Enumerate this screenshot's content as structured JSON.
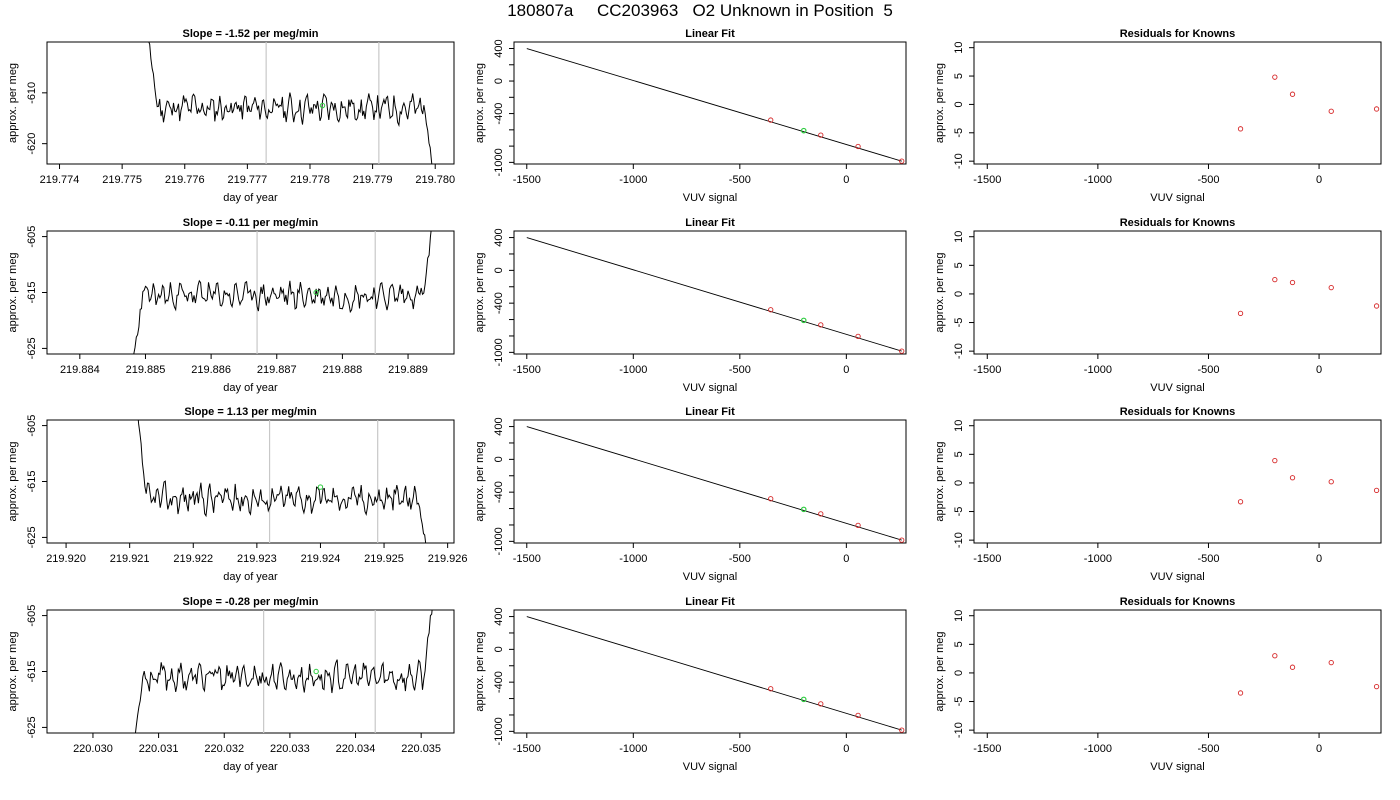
{
  "figure": {
    "title": "180807a     CC203963   O2 Unknown in Position  5"
  },
  "colors": {
    "line": "#000000",
    "known_point": "#d62728",
    "unknown_point": "#2ecc40",
    "window_line": "#c8c8c8"
  },
  "chart_data": [
    {
      "type": "line",
      "title": "Slope =  -1.52  per meg/min",
      "xlabel": "day of year",
      "ylabel": "approx. per meg",
      "xlim": [
        219.7738,
        219.7803
      ],
      "ylim": [
        -624,
        -600
      ],
      "x_ticks": [
        "219.774",
        "219.775",
        "219.776",
        "219.777",
        "219.778",
        "219.779",
        "219.780"
      ],
      "x_tick_values": [
        219.774,
        219.775,
        219.776,
        219.777,
        219.778,
        219.779,
        219.78
      ],
      "y_ticks": [
        "-620",
        "-610"
      ],
      "y_tick_values": [
        -620,
        -610
      ],
      "window": [
        219.7773,
        219.7791
      ],
      "unknown_point": {
        "x": 219.7782,
        "y": -612.5
      },
      "series": [
        {
          "x_start": 219.7754,
          "x_end": 219.78,
          "mean": -613.0,
          "amp": 2.6,
          "seed": 11,
          "start_y": -597,
          "end_y": -630
        }
      ]
    },
    {
      "type": "scatter",
      "title": "Linear Fit",
      "xlabel": "VUV signal",
      "ylabel": "approx. per meg",
      "xlim": [
        -1560,
        280
      ],
      "ylim": [
        -1020,
        480
      ],
      "x_ticks": [
        "-1500",
        "-1000",
        "-500",
        "0"
      ],
      "x_tick_values": [
        -1500,
        -1000,
        -500,
        0
      ],
      "y_ticks": [
        "-1000",
        "-800",
        "-600",
        "-400",
        "-200",
        "0",
        "200",
        "400"
      ],
      "y_tick_values": [
        -1000,
        -800,
        -600,
        -400,
        -200,
        0,
        200,
        400
      ],
      "y_tick_labels_shown": [
        "-1000",
        "-400",
        "0",
        "400"
      ],
      "fit_line": {
        "x": [
          -1500,
          260
        ],
        "y": [
          400,
          -985
        ]
      },
      "knowns": {
        "x": [
          -355,
          -120,
          55,
          260
        ],
        "y": [
          -480,
          -665,
          -805,
          -985
        ]
      },
      "unknown_point": {
        "x": -200,
        "y": -610
      }
    },
    {
      "type": "scatter",
      "title": "Residuals for Knowns",
      "xlabel": "VUV signal",
      "ylabel": "approx. per meg",
      "xlim": [
        -1560,
        280
      ],
      "ylim": [
        -10.5,
        11
      ],
      "x_ticks": [
        "-1500",
        "-1000",
        "-500",
        "0"
      ],
      "x_tick_values": [
        -1500,
        -1000,
        -500,
        0
      ],
      "y_ticks": [
        "-10",
        "-5",
        "0",
        "5",
        "10"
      ],
      "y_tick_values": [
        -10,
        -5,
        0,
        5,
        10
      ],
      "points": {
        "x": [
          -355,
          -200,
          -120,
          55,
          260
        ],
        "y": [
          -4.3,
          4.8,
          1.8,
          -1.2,
          -0.8
        ]
      }
    },
    {
      "type": "line",
      "title": "Slope =  -0.11  per meg/min",
      "xlabel": "day of year",
      "ylabel": "approx. per meg",
      "xlim": [
        219.8835,
        219.8897
      ],
      "ylim": [
        -626,
        -604
      ],
      "x_ticks": [
        "219.884",
        "219.885",
        "219.886",
        "219.887",
        "219.888",
        "219.889"
      ],
      "x_tick_values": [
        219.884,
        219.885,
        219.886,
        219.887,
        219.888,
        219.889
      ],
      "y_ticks": [
        "-625",
        "-615",
        "-605"
      ],
      "y_tick_values": [
        -625,
        -615,
        -605
      ],
      "window": [
        219.8867,
        219.8885
      ],
      "unknown_point": {
        "x": 219.8876,
        "y": -615
      },
      "series": [
        {
          "x_start": 219.8848,
          "x_end": 219.8894,
          "mean": -615.5,
          "amp": 2.2,
          "seed": 23,
          "start_y": -628,
          "end_y": -600
        }
      ]
    },
    {
      "type": "scatter",
      "title": "Linear Fit",
      "xlabel": "VUV signal",
      "ylabel": "approx. per meg",
      "xlim": [
        -1560,
        280
      ],
      "ylim": [
        -1020,
        480
      ],
      "x_ticks": [
        "-1500",
        "-1000",
        "-500",
        "0"
      ],
      "x_tick_values": [
        -1500,
        -1000,
        -500,
        0
      ],
      "y_ticks": [
        "-1000",
        "-800",
        "-600",
        "-400",
        "-200",
        "0",
        "200",
        "400"
      ],
      "y_tick_values": [
        -1000,
        -800,
        -600,
        -400,
        -200,
        0,
        200,
        400
      ],
      "y_tick_labels_shown": [
        "-1000",
        "-400",
        "0",
        "400"
      ],
      "fit_line": {
        "x": [
          -1500,
          260
        ],
        "y": [
          400,
          -985
        ]
      },
      "knowns": {
        "x": [
          -355,
          -120,
          55,
          260
        ],
        "y": [
          -480,
          -665,
          -805,
          -985
        ]
      },
      "unknown_point": {
        "x": -200,
        "y": -610
      }
    },
    {
      "type": "scatter",
      "title": "Residuals for Knowns",
      "xlabel": "VUV signal",
      "ylabel": "approx. per meg",
      "xlim": [
        -1560,
        280
      ],
      "ylim": [
        -10.5,
        11
      ],
      "x_ticks": [
        "-1500",
        "-1000",
        "-500",
        "0"
      ],
      "x_tick_values": [
        -1500,
        -1000,
        -500,
        0
      ],
      "y_ticks": [
        "-10",
        "-5",
        "0",
        "5",
        "10"
      ],
      "y_tick_values": [
        -10,
        -5,
        0,
        5,
        10
      ],
      "points": {
        "x": [
          -355,
          -200,
          -120,
          55,
          260
        ],
        "y": [
          -3.4,
          2.5,
          2.0,
          1.1,
          -2.1
        ]
      }
    },
    {
      "type": "line",
      "title": "Slope =  1.13  per meg/min",
      "xlabel": "day of year",
      "ylabel": "approx. per meg",
      "xlim": [
        219.9197,
        219.9261
      ],
      "ylim": [
        -626,
        -604
      ],
      "x_ticks": [
        "219.920",
        "219.921",
        "219.922",
        "219.923",
        "219.924",
        "219.925",
        "219.926"
      ],
      "x_tick_values": [
        219.92,
        219.921,
        219.922,
        219.923,
        219.924,
        219.925,
        219.926
      ],
      "y_ticks": [
        "-625",
        "-615",
        "-605"
      ],
      "y_tick_values": [
        -625,
        -615,
        -605
      ],
      "window": [
        219.9232,
        219.9249
      ],
      "unknown_point": {
        "x": 219.924,
        "y": -616
      },
      "series": [
        {
          "x_start": 219.9211,
          "x_end": 219.9257,
          "mean": -618.0,
          "amp": 2.4,
          "seed": 37,
          "start_y": -600,
          "end_y": -630
        }
      ]
    },
    {
      "type": "scatter",
      "title": "Linear Fit",
      "xlabel": "VUV signal",
      "ylabel": "approx. per meg",
      "xlim": [
        -1560,
        280
      ],
      "ylim": [
        -1020,
        480
      ],
      "x_ticks": [
        "-1500",
        "-1000",
        "-500",
        "0"
      ],
      "x_tick_values": [
        -1500,
        -1000,
        -500,
        0
      ],
      "y_ticks": [
        "-1000",
        "-800",
        "-600",
        "-400",
        "-200",
        "0",
        "200",
        "400"
      ],
      "y_tick_values": [
        -1000,
        -800,
        -600,
        -400,
        -200,
        0,
        200,
        400
      ],
      "y_tick_labels_shown": [
        "-1000",
        "-400",
        "0",
        "400"
      ],
      "fit_line": {
        "x": [
          -1500,
          260
        ],
        "y": [
          400,
          -985
        ]
      },
      "knowns": {
        "x": [
          -355,
          -120,
          55,
          260
        ],
        "y": [
          -480,
          -665,
          -805,
          -985
        ]
      },
      "unknown_point": {
        "x": -200,
        "y": -610
      }
    },
    {
      "type": "scatter",
      "title": "Residuals for Knowns",
      "xlabel": "VUV signal",
      "ylabel": "approx. per meg",
      "xlim": [
        -1560,
        280
      ],
      "ylim": [
        -10.5,
        11
      ],
      "x_ticks": [
        "-1500",
        "-1000",
        "-500",
        "0"
      ],
      "x_tick_values": [
        -1500,
        -1000,
        -500,
        0
      ],
      "y_ticks": [
        "-10",
        "-5",
        "0",
        "5",
        "10"
      ],
      "y_tick_values": [
        -10,
        -5,
        0,
        5,
        10
      ],
      "points": {
        "x": [
          -355,
          -200,
          -120,
          55,
          260
        ],
        "y": [
          -3.3,
          3.9,
          0.9,
          0.2,
          -1.3
        ]
      }
    },
    {
      "type": "line",
      "title": "Slope =  -0.28  per meg/min",
      "xlabel": "day of year",
      "ylabel": "approx. per meg",
      "xlim": [
        220.0293,
        220.0355
      ],
      "ylim": [
        -626,
        -604
      ],
      "x_ticks": [
        "220.030",
        "220.031",
        "220.032",
        "220.033",
        "220.034",
        "220.035"
      ],
      "x_tick_values": [
        220.03,
        220.031,
        220.032,
        220.033,
        220.034,
        220.035
      ],
      "y_ticks": [
        "-625",
        "-615",
        "-605"
      ],
      "y_tick_values": [
        -625,
        -615,
        -605
      ],
      "window": [
        220.0326,
        220.0343
      ],
      "unknown_point": {
        "x": 220.0334,
        "y": -615
      },
      "series": [
        {
          "x_start": 220.0306,
          "x_end": 220.0352,
          "mean": -616.0,
          "amp": 2.3,
          "seed": 53,
          "start_y": -630,
          "end_y": -600
        }
      ]
    },
    {
      "type": "scatter",
      "title": "Linear Fit",
      "xlabel": "VUV signal",
      "ylabel": "approx. per meg",
      "xlim": [
        -1560,
        280
      ],
      "ylim": [
        -1020,
        480
      ],
      "x_ticks": [
        "-1500",
        "-1000",
        "-500",
        "0"
      ],
      "x_tick_values": [
        -1500,
        -1000,
        -500,
        0
      ],
      "y_ticks": [
        "-1000",
        "-800",
        "-600",
        "-400",
        "-200",
        "0",
        "200",
        "400"
      ],
      "y_tick_values": [
        -1000,
        -800,
        -600,
        -400,
        -200,
        0,
        200,
        400
      ],
      "y_tick_labels_shown": [
        "-1000",
        "-400",
        "0",
        "400"
      ],
      "fit_line": {
        "x": [
          -1500,
          260
        ],
        "y": [
          400,
          -985
        ]
      },
      "knowns": {
        "x": [
          -355,
          -120,
          55,
          260
        ],
        "y": [
          -480,
          -665,
          -805,
          -985
        ]
      },
      "unknown_point": {
        "x": -200,
        "y": -610
      }
    },
    {
      "type": "scatter",
      "title": "Residuals for Knowns",
      "xlabel": "VUV signal",
      "ylabel": "approx. per meg",
      "xlim": [
        -1560,
        280
      ],
      "ylim": [
        -10.5,
        11
      ],
      "x_ticks": [
        "-1500",
        "-1000",
        "-500",
        "0"
      ],
      "x_tick_values": [
        -1500,
        -1000,
        -500,
        0
      ],
      "y_ticks": [
        "-10",
        "-5",
        "0",
        "5",
        "10"
      ],
      "points": {
        "x": [
          -355,
          -200,
          -120,
          55,
          260
        ],
        "y": [
          -3.5,
          3.0,
          1.0,
          1.8,
          -2.4
        ]
      }
    }
  ]
}
